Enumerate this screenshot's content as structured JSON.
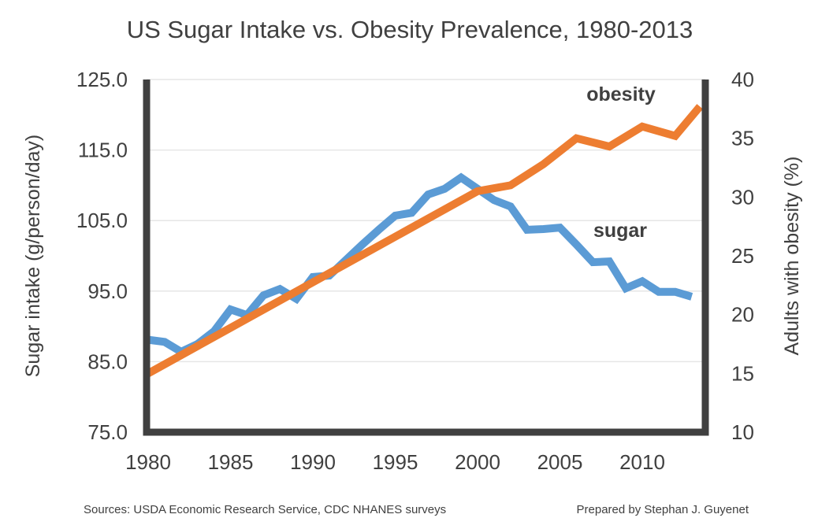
{
  "chart_data": {
    "type": "line",
    "title": "US Sugar Intake vs. Obesity Prevalence, 1980-2013",
    "xlabel": "",
    "ylabel": "Sugar intake (g/person/day)",
    "y2label": "Adults with obesity (%)",
    "xlim": [
      1980,
      2014
    ],
    "ylim": [
      75,
      125
    ],
    "y2lim": [
      10,
      40
    ],
    "x_ticks": [
      "1980",
      "1985",
      "1990",
      "1995",
      "2000",
      "2005",
      "2010"
    ],
    "y_ticks": [
      "75.0",
      "85.0",
      "95.0",
      "105.0",
      "115.0",
      "125.0"
    ],
    "y2_ticks": [
      "10",
      "15",
      "20",
      "25",
      "30",
      "35",
      "40"
    ],
    "grid": true,
    "series": [
      {
        "name": "sugar",
        "axis": "left",
        "color": "#5b9bd5",
        "x": [
          1980,
          1981,
          1982,
          1983,
          1984,
          1985,
          1986,
          1987,
          1988,
          1989,
          1990,
          1991,
          1992,
          1993,
          1994,
          1995,
          1996,
          1997,
          1998,
          1999,
          2000,
          2001,
          2002,
          2003,
          2004,
          2005,
          2006,
          2007,
          2008,
          2009,
          2010,
          2011,
          2012,
          2013
        ],
        "values": [
          88.1,
          87.8,
          86.4,
          87.5,
          89.3,
          92.4,
          91.6,
          94.4,
          95.3,
          93.9,
          97.0,
          97.2,
          99.4,
          101.6,
          103.7,
          105.7,
          106.1,
          108.7,
          109.5,
          111.1,
          109.5,
          107.9,
          107.0,
          103.7,
          103.8,
          104.0,
          101.6,
          99.1,
          99.2,
          95.4,
          96.4,
          94.9,
          94.9,
          94.2
        ]
      },
      {
        "name": "obesity",
        "axis": "right",
        "color": "#ed7d31",
        "x": [
          1980,
          2000,
          2002,
          2004,
          2006,
          2008,
          2010,
          2012,
          2013.5
        ],
        "values": [
          15.0,
          30.5,
          31.0,
          32.8,
          35.0,
          34.3,
          36.0,
          35.2,
          37.7
        ]
      }
    ],
    "annotations": [
      {
        "text": "obesity",
        "series": "obesity"
      },
      {
        "text": "sugar",
        "series": "sugar"
      }
    ],
    "legend": "none"
  },
  "footer": {
    "sources": "Sources: USDA Economic Research Service, CDC NHANES surveys",
    "credit": "Prepared by Stephan J. Guyenet"
  }
}
